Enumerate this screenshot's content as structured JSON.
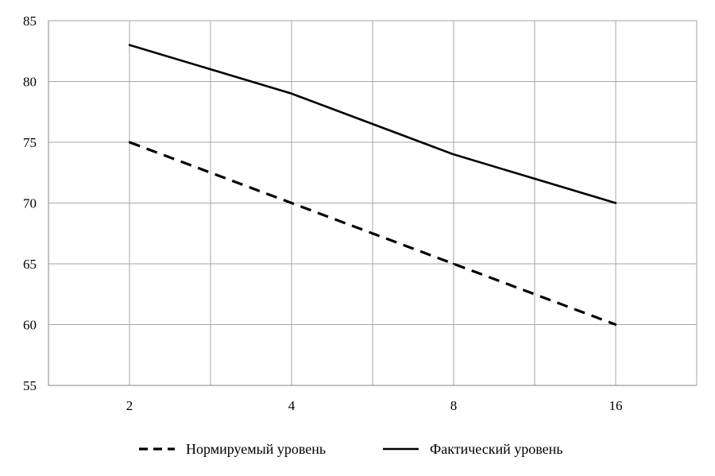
{
  "chart_data": {
    "type": "line",
    "categories": [
      "2",
      "",
      "4",
      "",
      "8",
      "",
      "16",
      ""
    ],
    "y_ticks": [
      "55",
      "60",
      "65",
      "70",
      "75",
      "80",
      "85"
    ],
    "ylim": [
      55,
      85
    ],
    "grid": true,
    "legend_position": "bottom",
    "series": [
      {
        "name": "Нормируемый уровень",
        "style": "dashed",
        "color": "#000000",
        "points": [
          {
            "category_index": 0,
            "y": 75
          },
          {
            "category_index": 2,
            "y": 70
          },
          {
            "category_index": 4,
            "y": 65
          },
          {
            "category_index": 6,
            "y": 60
          }
        ]
      },
      {
        "name": "Фактический уровень",
        "style": "solid",
        "color": "#000000",
        "points": [
          {
            "category_index": 0,
            "y": 83
          },
          {
            "category_index": 2,
            "y": 79
          },
          {
            "category_index": 4,
            "y": 74
          },
          {
            "category_index": 6,
            "y": 70
          }
        ]
      }
    ]
  }
}
